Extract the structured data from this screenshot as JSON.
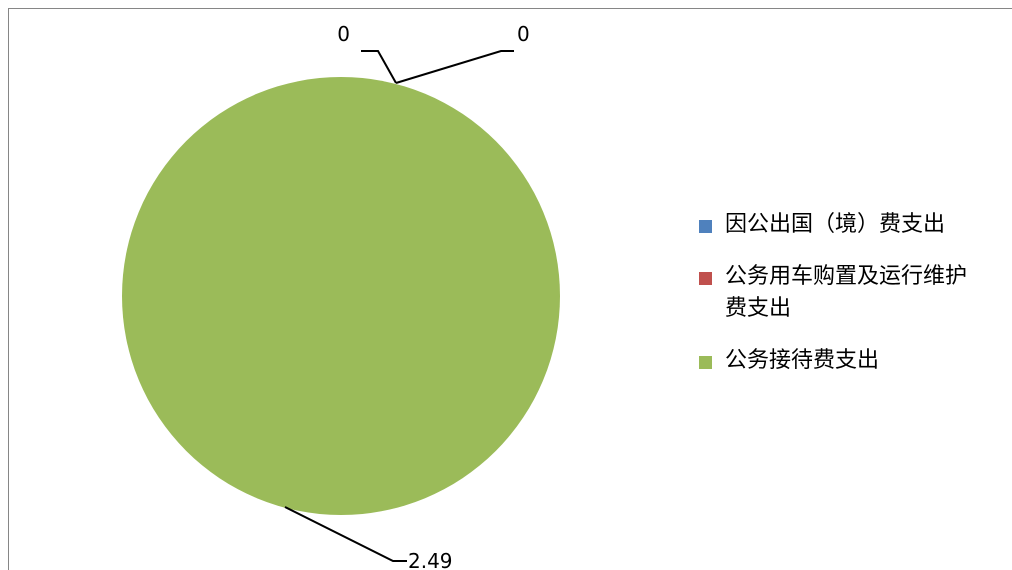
{
  "chart_data": {
    "type": "pie",
    "categories": [
      "因公出国（境）费支出",
      "公务用车购置及运行维护费支出",
      "公务接待费支出"
    ],
    "values": [
      0,
      0,
      2.49
    ],
    "data_labels": [
      "0",
      "0",
      "2.49"
    ],
    "colors": [
      "#4f81bd",
      "#c0504d",
      "#9bbb59"
    ],
    "legend_position": "right",
    "legend": {
      "items": [
        {
          "line1": "因公出国（境）费支出",
          "line2": "",
          "color": "#4f81bd"
        },
        {
          "line1": "公务用车购置及运行维护",
          "line2": "费支出",
          "color": "#c0504d"
        },
        {
          "line1": "公务接待费支出",
          "line2": "",
          "color": "#9bbb59"
        }
      ]
    }
  }
}
